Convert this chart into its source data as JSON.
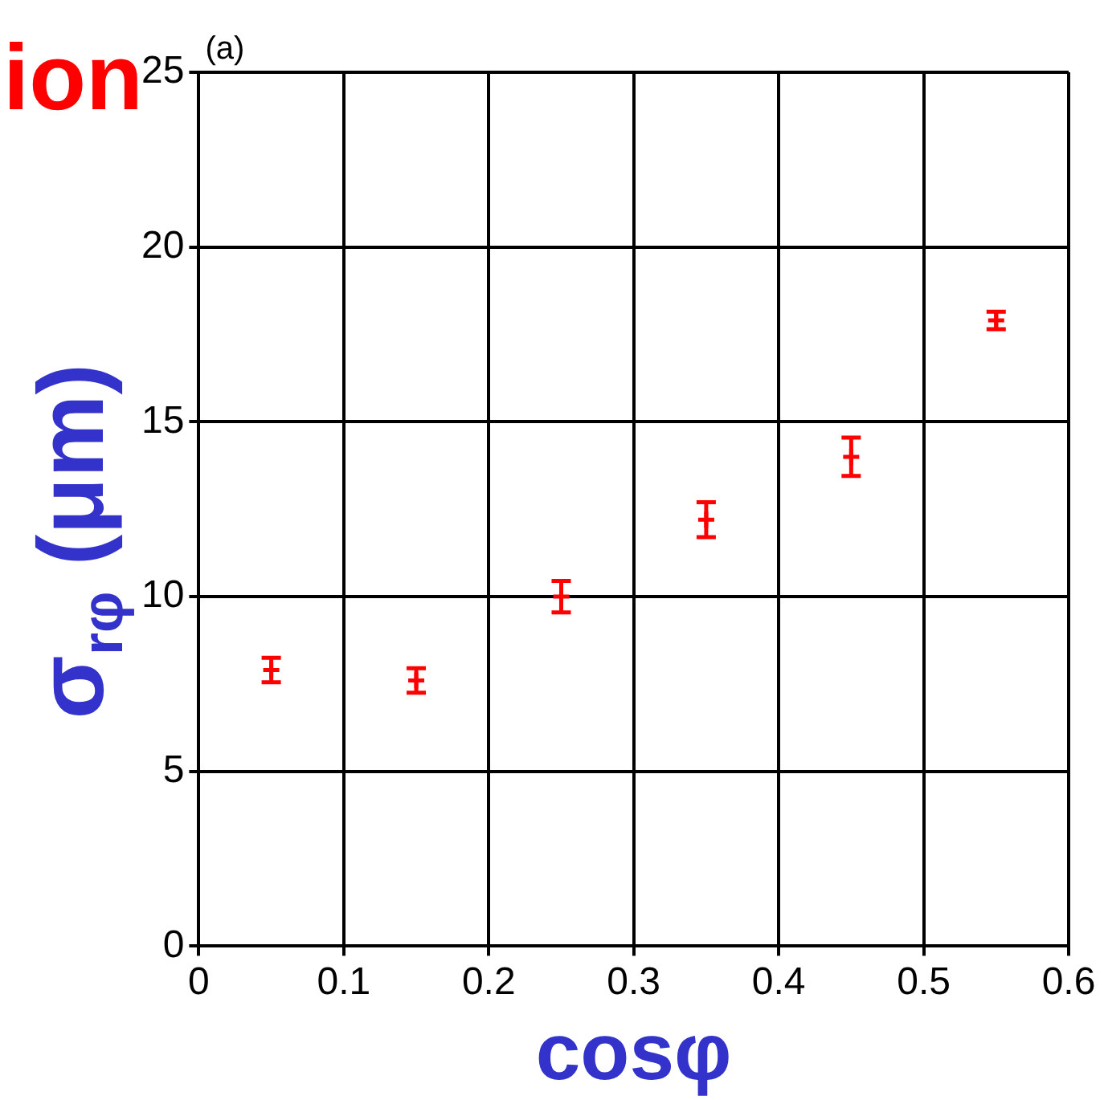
{
  "chart_data": {
    "type": "scatter",
    "title": "ion",
    "xlabel": "cosφ",
    "ylabel": "σ$_{rφ}$ (μm)",
    "annotations": [
      "(a)"
    ],
    "x": [
      0.05,
      0.15,
      0.25,
      0.35,
      0.45,
      0.55
    ],
    "series": [
      {
        "color": "#ff0000",
        "values": [
          7.9,
          7.6,
          10.0,
          12.2,
          14.0,
          17.9
        ],
        "errors": [
          0.35,
          0.35,
          0.45,
          0.5,
          0.55,
          0.25
        ]
      }
    ],
    "xlim": [
      0,
      0.6
    ],
    "xticks": [
      0,
      0.1,
      0.2,
      0.3,
      0.4,
      0.5,
      0.6
    ],
    "ylim": [
      0,
      25
    ],
    "yticks": [
      0,
      5,
      10,
      15,
      20,
      25
    ],
    "grid": true,
    "marker": "cross"
  }
}
